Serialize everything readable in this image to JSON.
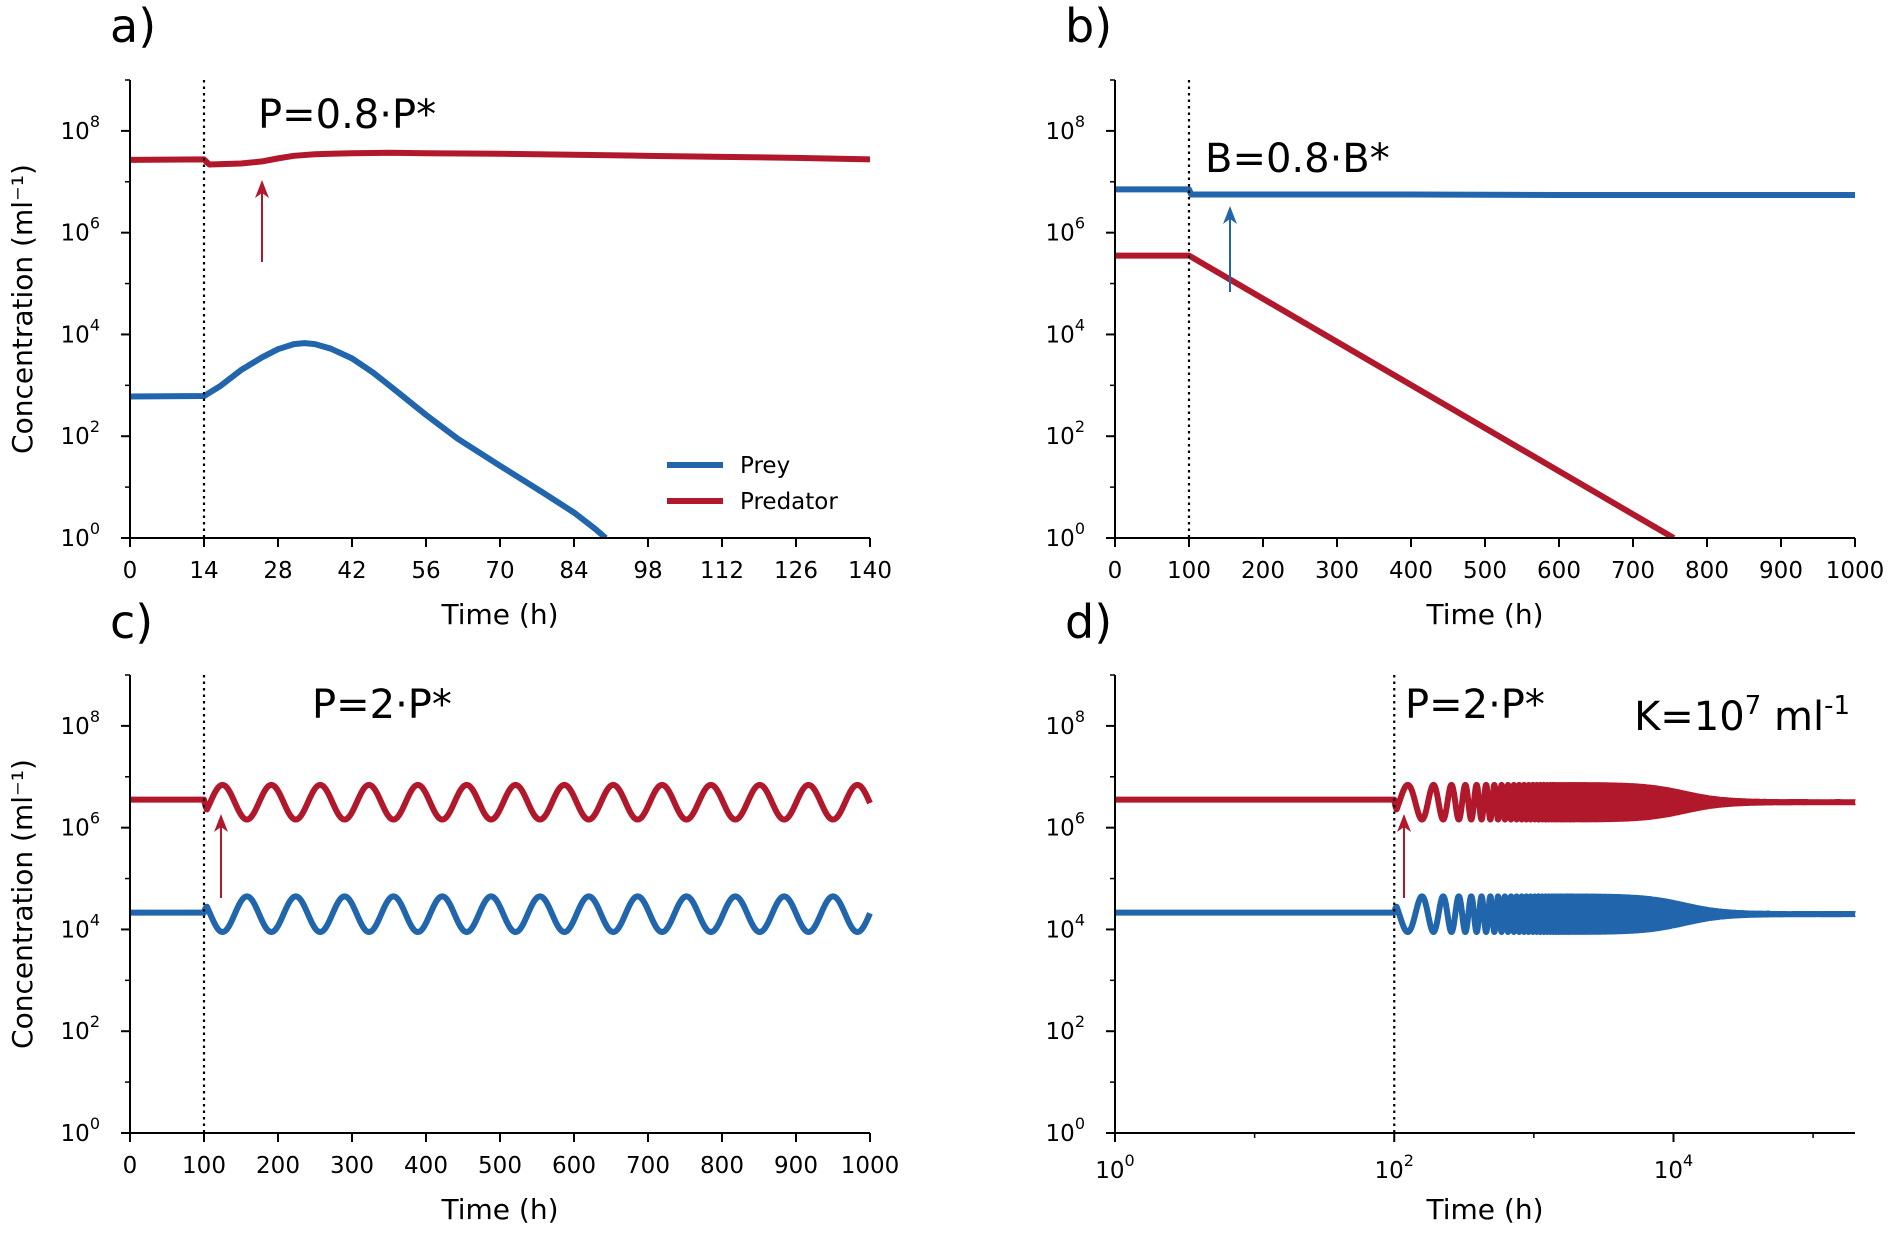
{
  "colors": {
    "prey": "#2166ac",
    "predator": "#b2182b"
  },
  "legend": {
    "placement": "lower-right of panel a",
    "entries": [
      {
        "name": "Prey",
        "color": "#2166ac"
      },
      {
        "name": "Predator",
        "color": "#b2182b"
      }
    ]
  },
  "chart_data": [
    {
      "type": "line",
      "panel_label": "a)",
      "annotation": "P=0.8·P*",
      "xlabel": "Time (h)",
      "ylabel": "Concentration (ml⁻¹)",
      "xscale": "linear",
      "yscale": "log",
      "xlim": [
        0,
        140
      ],
      "ylim_exp": [
        0,
        9
      ],
      "xticks": [
        "0",
        "14",
        "28",
        "42",
        "56",
        "70",
        "84",
        "98",
        "112",
        "126",
        "140"
      ],
      "yticks": [
        {
          "base": "10",
          "exp": "0"
        },
        {
          "base": "10",
          "exp": "2"
        },
        {
          "base": "10",
          "exp": "4"
        },
        {
          "base": "10",
          "exp": "6"
        },
        {
          "base": "10",
          "exp": "8"
        }
      ],
      "perturbation_x": 14,
      "arrow": {
        "x": 25,
        "color": "predator"
      },
      "series": [
        {
          "name": "Prey",
          "color_key": "prey",
          "x": [
            0,
            14,
            17,
            21,
            25,
            28,
            31,
            33,
            35,
            38,
            42,
            46,
            50,
            56,
            62,
            70,
            78,
            84,
            88,
            90
          ],
          "y_log10": [
            2.78,
            2.79,
            2.98,
            3.3,
            3.55,
            3.71,
            3.81,
            3.83,
            3.81,
            3.72,
            3.53,
            3.25,
            2.92,
            2.42,
            1.95,
            1.42,
            0.9,
            0.5,
            0.18,
            0.0
          ]
        },
        {
          "name": "Predator",
          "color_key": "predator",
          "x": [
            0,
            14,
            15,
            21,
            25,
            28,
            31,
            35,
            38,
            42,
            49,
            56,
            70,
            84,
            98,
            112,
            126,
            140
          ],
          "y_log10": [
            7.43,
            7.44,
            7.34,
            7.36,
            7.4,
            7.46,
            7.51,
            7.54,
            7.55,
            7.56,
            7.57,
            7.56,
            7.55,
            7.53,
            7.51,
            7.49,
            7.47,
            7.44
          ]
        }
      ]
    },
    {
      "type": "line",
      "panel_label": "b)",
      "annotation": "B=0.8·B*",
      "xlabel": "Time (h)",
      "ylabel": "",
      "xscale": "linear",
      "yscale": "log",
      "xlim": [
        0,
        1000
      ],
      "ylim_exp": [
        0,
        9
      ],
      "xticks": [
        "0",
        "100",
        "200",
        "300",
        "400",
        "500",
        "600",
        "700",
        "800",
        "900",
        "1000"
      ],
      "yticks": [
        {
          "base": "10",
          "exp": "0"
        },
        {
          "base": "10",
          "exp": "2"
        },
        {
          "base": "10",
          "exp": "4"
        },
        {
          "base": "10",
          "exp": "6"
        },
        {
          "base": "10",
          "exp": "8"
        }
      ],
      "perturbation_x": 100,
      "arrow": {
        "x": 155,
        "color": "prey"
      },
      "series": [
        {
          "name": "Prey",
          "color_key": "prey",
          "x": [
            0,
            100,
            103,
            200,
            400,
            600,
            800,
            1000
          ],
          "y_log10": [
            6.85,
            6.85,
            6.75,
            6.75,
            6.75,
            6.74,
            6.74,
            6.74
          ]
        },
        {
          "name": "Predator",
          "color_key": "predator",
          "x": [
            0,
            100,
            755
          ],
          "y_log10": [
            5.55,
            5.55,
            0.0
          ]
        }
      ]
    },
    {
      "type": "line",
      "panel_label": "c)",
      "annotation": "P=2·P*",
      "xlabel": "Time (h)",
      "ylabel": "Concentration (ml⁻¹)",
      "xscale": "linear",
      "yscale": "log",
      "xlim": [
        0,
        1000
      ],
      "ylim_exp": [
        0,
        9
      ],
      "xticks": [
        "0",
        "100",
        "200",
        "300",
        "400",
        "500",
        "600",
        "700",
        "800",
        "900",
        "1000"
      ],
      "yticks": [
        {
          "base": "10",
          "exp": "0"
        },
        {
          "base": "10",
          "exp": "2"
        },
        {
          "base": "10",
          "exp": "4"
        },
        {
          "base": "10",
          "exp": "6"
        },
        {
          "base": "10",
          "exp": "8"
        }
      ],
      "perturbation_x": 100,
      "arrow": {
        "x": 122,
        "color": "predator"
      },
      "oscillation_period_h": 66,
      "series": [
        {
          "name": "Prey",
          "color_key": "prey",
          "baseline_log10": 4.33,
          "mean_log10": 4.3,
          "amplitude_log10": 0.35,
          "phase_h": 158
        },
        {
          "name": "Predator",
          "color_key": "predator",
          "baseline_log10": 6.55,
          "mean_log10": 6.5,
          "amplitude_log10": 0.34,
          "phase_h": 125
        }
      ]
    },
    {
      "type": "line",
      "panel_label": "d)",
      "annotation": "P=2·P*",
      "annotation2": {
        "base": "K=10",
        "exp": "7",
        "unit": " ml",
        "unit_exp": "-1"
      },
      "xlabel": "Time (h)",
      "ylabel": "",
      "xscale": "log",
      "yscale": "log",
      "xlim_exp": [
        0,
        5.3
      ],
      "ylim_exp": [
        0,
        9
      ],
      "xticks": [
        {
          "base": "10",
          "exp": "0"
        },
        {
          "base": "10",
          "exp": "2"
        },
        {
          "base": "10",
          "exp": "4"
        }
      ],
      "yticks": [
        {
          "base": "10",
          "exp": "0"
        },
        {
          "base": "10",
          "exp": "2"
        },
        {
          "base": "10",
          "exp": "4"
        },
        {
          "base": "10",
          "exp": "6"
        },
        {
          "base": "10",
          "exp": "8"
        }
      ],
      "perturbation_x": 100,
      "arrow": {
        "x": 115,
        "color": "predator"
      },
      "oscillation_period_h": 66,
      "damping_center_h": 12000,
      "series": [
        {
          "name": "Prey",
          "color_key": "prey",
          "baseline_log10": 4.33,
          "mean_log10": 4.3,
          "amplitude_log10": 0.35,
          "phase_h": 158
        },
        {
          "name": "Predator",
          "color_key": "predator",
          "baseline_log10": 6.55,
          "mean_log10": 6.5,
          "amplitude_log10": 0.34,
          "phase_h": 125
        }
      ]
    }
  ]
}
